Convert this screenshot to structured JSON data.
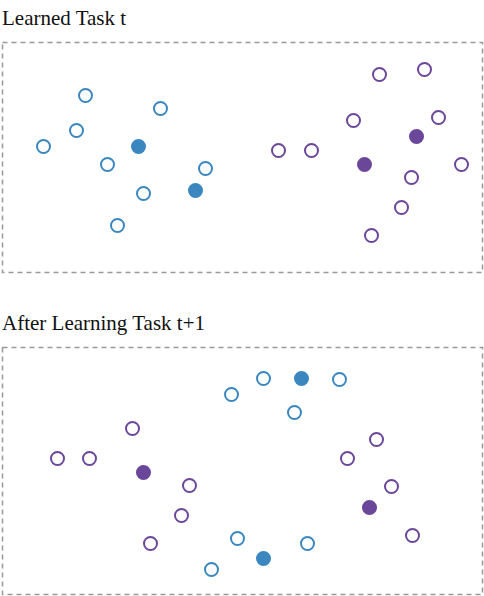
{
  "chart_data": [
    {
      "type": "scatter",
      "title": "Learned Task t",
      "tick_labels": false,
      "grid": false,
      "xlim": [
        0,
        480
      ],
      "ylim": [
        0,
        230
      ],
      "series": [
        {
          "color": "#3a87c0",
          "marker": "circle-open",
          "points": [
            [
              83,
              177
            ],
            [
              74,
              142
            ],
            [
              158,
              164
            ],
            [
              41,
              126
            ],
            [
              105,
              108
            ],
            [
              203,
              104
            ],
            [
              141,
              79
            ],
            [
              115,
              47
            ]
          ]
        },
        {
          "color": "#3a87c0",
          "marker": "circle",
          "points": [
            [
              136,
              126
            ],
            [
              193,
              82
            ]
          ]
        },
        {
          "color": "#6b479a",
          "marker": "circle-open",
          "points": [
            [
              377,
              198
            ],
            [
              422,
              203
            ],
            [
              351,
              152
            ],
            [
              436,
              155
            ],
            [
              276,
              122
            ],
            [
              309,
              122
            ],
            [
              459,
              108
            ],
            [
              409,
              95
            ],
            [
              399,
              65
            ],
            [
              369,
              37
            ]
          ]
        },
        {
          "color": "#6b479a",
          "marker": "circle",
          "points": [
            [
              414,
              136
            ],
            [
              362,
              108
            ]
          ]
        }
      ]
    },
    {
      "type": "scatter",
      "title": "After Learning Task t+1",
      "tick_labels": false,
      "grid": false,
      "xlim": [
        0,
        480
      ],
      "ylim": [
        0,
        247
      ],
      "series": [
        {
          "color": "#3a87c0",
          "marker": "circle-open",
          "points": [
            [
              229,
              200
            ],
            [
              261,
              216
            ],
            [
              337,
              215
            ],
            [
              292,
              182
            ],
            [
              235,
              56
            ],
            [
              305,
              51
            ],
            [
              209,
              25
            ]
          ]
        },
        {
          "color": "#3a87c0",
          "marker": "circle",
          "points": [
            [
              299,
              216
            ],
            [
              261,
              36
            ]
          ]
        },
        {
          "color": "#6b479a",
          "marker": "circle-open",
          "points": [
            [
              130,
              166
            ],
            [
              55,
              136
            ],
            [
              87,
              136
            ],
            [
              187,
              109
            ],
            [
              179,
              79
            ],
            [
              148,
              51
            ],
            [
              345,
              136
            ],
            [
              374,
              155
            ],
            [
              389,
              108
            ],
            [
              410,
              59
            ]
          ]
        },
        {
          "color": "#6b479a",
          "marker": "circle",
          "points": [
            [
              141,
              122
            ],
            [
              367,
              87
            ]
          ]
        }
      ]
    }
  ]
}
